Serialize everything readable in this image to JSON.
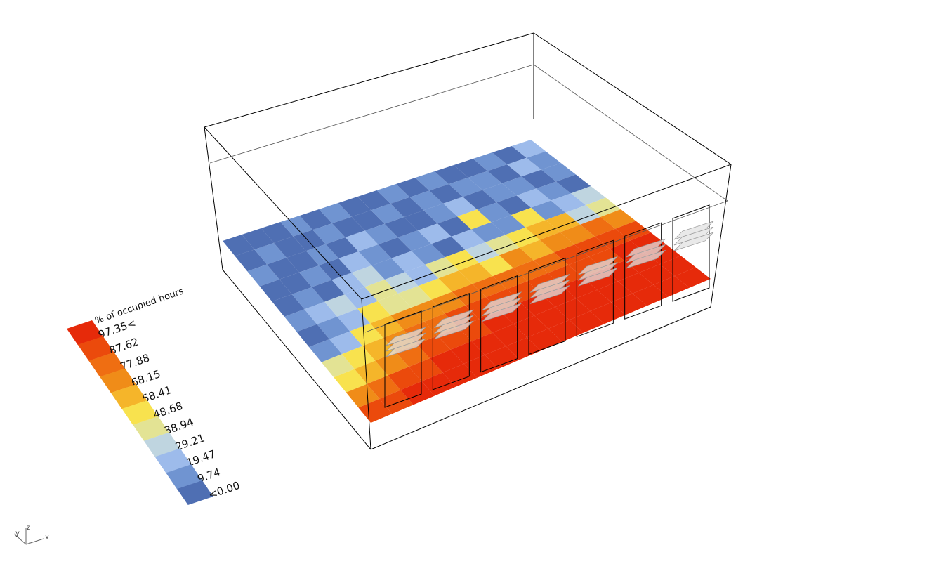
{
  "legend": {
    "title": "% of occupied hours",
    "labels": [
      "97.35<",
      "87.62",
      "77.88",
      "68.15",
      "58.41",
      "48.68",
      "38.94",
      "29.21",
      "19.47",
      "9.74",
      "<0.00"
    ],
    "colors": [
      "#e62a0a",
      "#eb4a0c",
      "#ef6e12",
      "#f08c18",
      "#f5b52a",
      "#f8e24e",
      "#e3e394",
      "#bfd5e0",
      "#9dbbeb",
      "#7094d1",
      "#4f6fb3"
    ]
  },
  "axes": {
    "y": "y",
    "z": "z",
    "x": "x"
  },
  "grid": {
    "rows": 12,
    "cols": 16,
    "note_values": "class index 0 (>=97.35) .. 10 (<0.00), row 0 = far (back) edge, row 11 = window side",
    "values": [
      [
        10,
        10,
        10,
        9,
        10,
        9,
        10,
        10,
        9,
        10,
        9,
        10,
        10,
        9,
        10,
        8
      ],
      [
        10,
        9,
        10,
        10,
        9,
        10,
        10,
        9,
        10,
        9,
        10,
        9,
        9,
        10,
        8,
        9
      ],
      [
        9,
        10,
        10,
        9,
        10,
        8,
        9,
        10,
        10,
        9,
        8,
        10,
        9,
        9,
        10,
        9
      ],
      [
        10,
        10,
        9,
        10,
        8,
        9,
        10,
        9,
        8,
        10,
        5,
        9,
        10,
        8,
        9,
        10
      ],
      [
        10,
        9,
        10,
        8,
        7,
        9,
        8,
        9,
        10,
        8,
        9,
        9,
        5,
        9,
        8,
        7
      ],
      [
        9,
        8,
        7,
        8,
        6,
        7,
        8,
        6,
        5,
        7,
        6,
        5,
        4,
        4,
        7,
        6
      ],
      [
        10,
        9,
        8,
        5,
        6,
        6,
        5,
        4,
        4,
        5,
        3,
        4,
        3,
        3,
        2,
        3
      ],
      [
        9,
        8,
        5,
        4,
        3,
        3,
        3,
        2,
        2,
        2,
        2,
        2,
        1,
        1,
        1,
        1
      ],
      [
        6,
        5,
        4,
        3,
        2,
        2,
        1,
        1,
        1,
        1,
        1,
        1,
        1,
        1,
        0,
        0
      ],
      [
        5,
        4,
        3,
        2,
        1,
        1,
        1,
        0,
        0,
        0,
        0,
        0,
        0,
        0,
        0,
        0
      ],
      [
        3,
        2,
        1,
        1,
        0,
        0,
        0,
        0,
        0,
        0,
        0,
        0,
        0,
        0,
        0,
        0
      ],
      [
        1,
        1,
        0,
        0,
        0,
        0,
        0,
        0,
        0,
        0,
        0,
        0,
        0,
        0,
        0,
        0
      ]
    ]
  }
}
